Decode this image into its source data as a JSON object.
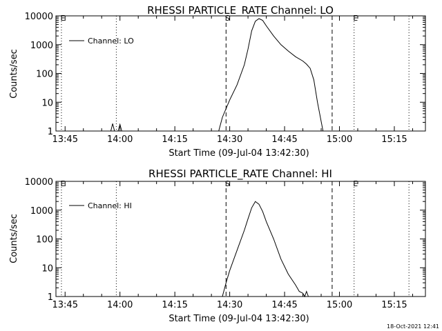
{
  "timestamp": "18-Oct-2021 12:41",
  "chart_data": [
    {
      "type": "line",
      "title": "RHESSI PARTICLE_RATE Channel: LO",
      "xlabel": "Start Time (09-Jul-04 13:42:30)",
      "ylabel": "Counts/sec",
      "yscale": "log",
      "ylim": [
        1,
        10000
      ],
      "xlim": [
        "13:42:30",
        "15:23:30"
      ],
      "x_ticks": [
        "13:45",
        "14:00",
        "14:15",
        "14:30",
        "14:45",
        "15:00",
        "15:15"
      ],
      "y_ticks": [
        "1",
        "10",
        "100",
        "1000",
        "10000"
      ],
      "legend": {
        "position": "top-left",
        "entries": [
          "Channel: LO"
        ]
      },
      "markers": [
        {
          "label": "E",
          "time": "13:44",
          "style": "dotted"
        },
        {
          "label": "",
          "time": "13:59",
          "style": "dotted"
        },
        {
          "label": "S",
          "time": "14:29",
          "style": "dashed"
        },
        {
          "label": "",
          "time": "14:58",
          "style": "dashed"
        },
        {
          "label": "E",
          "time": "15:04",
          "style": "dotted"
        },
        {
          "label": "",
          "time": "15:19",
          "style": "dotted"
        }
      ],
      "series": [
        {
          "name": "Channel: LO",
          "points": [
            [
              "13:57:30",
              1
            ],
            [
              "13:58",
              1.8
            ],
            [
              "13:58:30",
              1
            ],
            [
              "13:59:30",
              1
            ],
            [
              "14:00",
              1.7
            ],
            [
              "14:00:30",
              1
            ],
            [
              "14:27",
              1
            ],
            [
              "14:28",
              3
            ],
            [
              "14:30",
              12
            ],
            [
              "14:32",
              40
            ],
            [
              "14:34",
              200
            ],
            [
              "14:35",
              700
            ],
            [
              "14:36",
              3000
            ],
            [
              "14:37",
              6500
            ],
            [
              "14:38",
              8000
            ],
            [
              "14:39",
              7000
            ],
            [
              "14:40",
              4500
            ],
            [
              "14:42",
              2000
            ],
            [
              "14:44",
              1000
            ],
            [
              "14:46",
              600
            ],
            [
              "14:48",
              380
            ],
            [
              "14:50",
              270
            ],
            [
              "14:51",
              210
            ],
            [
              "14:52",
              150
            ],
            [
              "14:53",
              60
            ],
            [
              "14:54",
              10
            ],
            [
              "14:55:30",
              1
            ]
          ]
        }
      ]
    },
    {
      "type": "line",
      "title": "RHESSI PARTICLE_RATE Channel: HI",
      "xlabel": "Start Time (09-Jul-04 13:42:30)",
      "ylabel": "Counts/sec",
      "yscale": "log",
      "ylim": [
        1,
        10000
      ],
      "xlim": [
        "13:42:30",
        "15:23:30"
      ],
      "x_ticks": [
        "13:45",
        "14:00",
        "14:15",
        "14:30",
        "14:45",
        "15:00",
        "15:15"
      ],
      "y_ticks": [
        "1",
        "10",
        "100",
        "1000",
        "10000"
      ],
      "legend": {
        "position": "top-left",
        "entries": [
          "Channel: HI"
        ]
      },
      "markers": [
        {
          "label": "E",
          "time": "13:44",
          "style": "dotted"
        },
        {
          "label": "",
          "time": "13:59",
          "style": "dotted"
        },
        {
          "label": "S",
          "time": "14:29",
          "style": "dashed"
        },
        {
          "label": "",
          "time": "14:58",
          "style": "dashed"
        },
        {
          "label": "E",
          "time": "15:04",
          "style": "dotted"
        },
        {
          "label": "",
          "time": "15:19",
          "style": "dotted"
        }
      ],
      "series": [
        {
          "name": "Channel: HI",
          "points": [
            [
              "14:28",
              1
            ],
            [
              "14:29",
              3
            ],
            [
              "14:30",
              8
            ],
            [
              "14:32",
              40
            ],
            [
              "14:34",
              200
            ],
            [
              "14:35",
              500
            ],
            [
              "14:36",
              1200
            ],
            [
              "14:37",
              2000
            ],
            [
              "14:38",
              1600
            ],
            [
              "14:39",
              900
            ],
            [
              "14:40",
              400
            ],
            [
              "14:42",
              100
            ],
            [
              "14:44",
              20
            ],
            [
              "14:46",
              6
            ],
            [
              "14:48",
              2.5
            ],
            [
              "14:49",
              1.5
            ],
            [
              "14:50",
              1.3
            ],
            [
              "14:50:30",
              1
            ],
            [
              "14:51",
              1.5
            ],
            [
              "14:51:30",
              1
            ]
          ]
        }
      ]
    }
  ]
}
